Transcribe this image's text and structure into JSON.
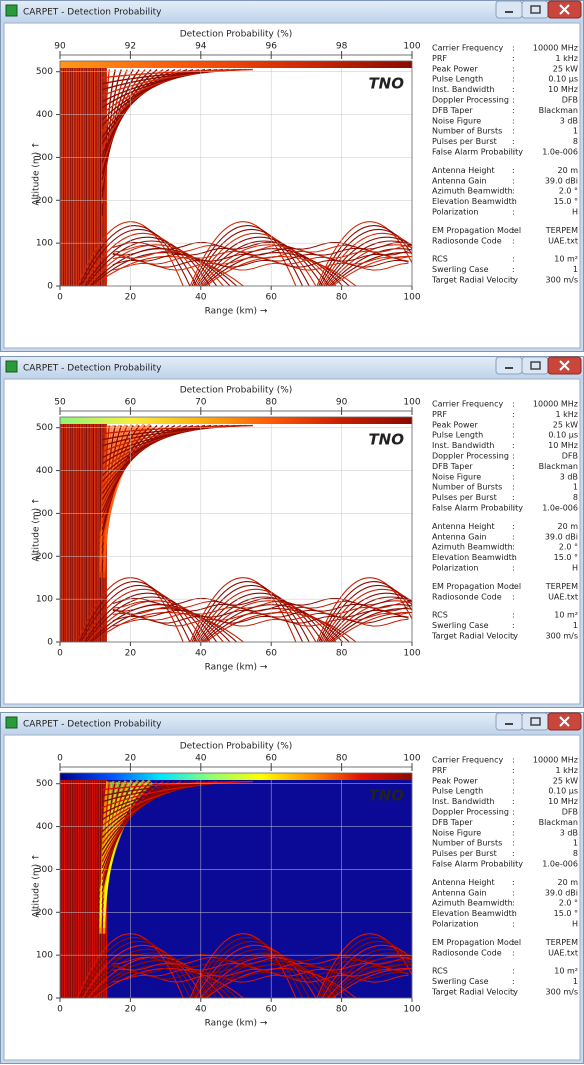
{
  "windows": [
    {
      "title": "CARPET - Detection Probability",
      "watermark": "TNO",
      "separator": ":",
      "chart": {
        "type": "heatmap",
        "colorbar_label": "Detection Probability (%)",
        "clim": [
          90,
          100
        ],
        "cticks": [
          90,
          92,
          94,
          96,
          98,
          100
        ],
        "colormap": [
          "#ff9a1a",
          "#ff5a0a",
          "#d42a05",
          "#8b0a00"
        ],
        "background": "#ffffff",
        "x_label": "Range (km) →",
        "xlim": [
          0,
          100
        ],
        "xticks": [
          0,
          20,
          40,
          60,
          80,
          100
        ],
        "y_label": "Altitude (m) ↑",
        "ylim": [
          0,
          525
        ],
        "yticks": [
          0,
          100,
          200,
          300,
          400,
          500
        ],
        "grid": true
      },
      "params": [
        [
          {
            "label": "Carrier Frequency",
            "value": "10000 MHz"
          },
          {
            "label": "PRF",
            "value": "1 kHz"
          },
          {
            "label": "Peak Power",
            "value": "25 kW"
          },
          {
            "label": "Pulse Length",
            "value": "0.10 µs"
          },
          {
            "label": "Inst. Bandwidth",
            "value": "10 MHz"
          },
          {
            "label": "Doppler Processing",
            "value": "DFB"
          },
          {
            "label": "DFB Taper",
            "value": "Blackman"
          },
          {
            "label": "Noise Figure",
            "value": "3 dB"
          },
          {
            "label": "Number of Bursts",
            "value": "1"
          },
          {
            "label": "Pulses per Burst",
            "value": "8"
          },
          {
            "label": "False Alarm Probability",
            "value": "1.0e-006"
          }
        ],
        [
          {
            "label": "Antenna Height",
            "value": "20 m"
          },
          {
            "label": "Antenna Gain",
            "value": "39.0 dBi"
          },
          {
            "label": "Azimuth Beamwidth",
            "value": "2.0 °"
          },
          {
            "label": "Elevation Beamwidth",
            "value": "15.0 °"
          },
          {
            "label": "Polarization",
            "value": "H"
          }
        ],
        [
          {
            "label": "EM Propagation Model",
            "value": "TERPEM"
          },
          {
            "label": "Radiosonde Code",
            "value": "UAE.txt"
          }
        ],
        [
          {
            "label": "RCS",
            "value": "10 m²"
          },
          {
            "label": "Swerling Case",
            "value": "1"
          },
          {
            "label": "Target Radial Velocity",
            "value": "300 m/s"
          }
        ]
      ]
    },
    {
      "title": "CARPET - Detection Probability",
      "watermark": "TNO",
      "separator": ":",
      "chart": {
        "type": "heatmap",
        "colorbar_label": "Detection Probability (%)",
        "clim": [
          50,
          100
        ],
        "cticks": [
          50,
          60,
          70,
          80,
          90,
          100
        ],
        "colormap": [
          "#8cf57a",
          "#f5f040",
          "#ffb010",
          "#ff5a05",
          "#c81e00",
          "#8b0a00"
        ],
        "background": "#ffffff",
        "x_label": "Range (km) →",
        "xlim": [
          0,
          100
        ],
        "xticks": [
          0,
          20,
          40,
          60,
          80,
          100
        ],
        "y_label": "Altitude (m) ↑",
        "ylim": [
          0,
          525
        ],
        "yticks": [
          0,
          100,
          200,
          300,
          400,
          500
        ],
        "grid": true
      },
      "params": [
        [
          {
            "label": "Carrier Frequency",
            "value": "10000 MHz"
          },
          {
            "label": "PRF",
            "value": "1 kHz"
          },
          {
            "label": "Peak Power",
            "value": "25 kW"
          },
          {
            "label": "Pulse Length",
            "value": "0.10 µs"
          },
          {
            "label": "Inst. Bandwidth",
            "value": "10 MHz"
          },
          {
            "label": "Doppler Processing",
            "value": "DFB"
          },
          {
            "label": "DFB Taper",
            "value": "Blackman"
          },
          {
            "label": "Noise Figure",
            "value": "3 dB"
          },
          {
            "label": "Number of Bursts",
            "value": "1"
          },
          {
            "label": "Pulses per Burst",
            "value": "8"
          },
          {
            "label": "False Alarm Probability",
            "value": "1.0e-006"
          }
        ],
        [
          {
            "label": "Antenna Height",
            "value": "20 m"
          },
          {
            "label": "Antenna Gain",
            "value": "39.0 dBi"
          },
          {
            "label": "Azimuth Beamwidth",
            "value": "2.0 °"
          },
          {
            "label": "Elevation Beamwidth",
            "value": "15.0 °"
          },
          {
            "label": "Polarization",
            "value": "H"
          }
        ],
        [
          {
            "label": "EM Propagation Model",
            "value": "TERPEM"
          },
          {
            "label": "Radiosonde Code",
            "value": "UAE.txt"
          }
        ],
        [
          {
            "label": "RCS",
            "value": "10 m²"
          },
          {
            "label": "Swerling Case",
            "value": "1"
          },
          {
            "label": "Target Radial Velocity",
            "value": "300 m/s"
          }
        ]
      ]
    },
    {
      "title": "CARPET - Detection Probability",
      "watermark": "TNO",
      "separator": ":",
      "chart": {
        "type": "heatmap",
        "colorbar_label": "Detection Probability (%)",
        "clim": [
          0,
          100
        ],
        "cticks": [
          0,
          20,
          40,
          60,
          80,
          100
        ],
        "colormap": [
          "#00008c",
          "#0050ff",
          "#00e6ff",
          "#90ff70",
          "#ffff00",
          "#ff9000",
          "#e01000",
          "#8b0a00"
        ],
        "background": "#0a0a96",
        "x_label": "Range (km) →",
        "xlim": [
          0,
          100
        ],
        "xticks": [
          0,
          20,
          40,
          60,
          80,
          100
        ],
        "y_label": "Altitude (m) ↑",
        "ylim": [
          0,
          525
        ],
        "yticks": [
          0,
          100,
          200,
          300,
          400,
          500
        ],
        "grid": true
      },
      "params": [
        [
          {
            "label": "Carrier Frequency",
            "value": "10000 MHz"
          },
          {
            "label": "PRF",
            "value": "1 kHz"
          },
          {
            "label": "Peak Power",
            "value": "25 kW"
          },
          {
            "label": "Pulse Length",
            "value": "0.10 µs"
          },
          {
            "label": "Inst. Bandwidth",
            "value": "10 MHz"
          },
          {
            "label": "Doppler Processing",
            "value": "DFB"
          },
          {
            "label": "DFB Taper",
            "value": "Blackman"
          },
          {
            "label": "Noise Figure",
            "value": "3 dB"
          },
          {
            "label": "Number of Bursts",
            "value": "1"
          },
          {
            "label": "Pulses per Burst",
            "value": "8"
          },
          {
            "label": "False Alarm Probability",
            "value": "1.0e-006"
          }
        ],
        [
          {
            "label": "Antenna Height",
            "value": "20 m"
          },
          {
            "label": "Antenna Gain",
            "value": "39.0 dBi"
          },
          {
            "label": "Azimuth Beamwidth",
            "value": "2.0 °"
          },
          {
            "label": "Elevation Beamwidth",
            "value": "15.0 °"
          },
          {
            "label": "Polarization",
            "value": "H"
          }
        ],
        [
          {
            "label": "EM Propagation Model",
            "value": "TERPEM"
          },
          {
            "label": "Radiosonde Code",
            "value": "UAE.txt"
          }
        ],
        [
          {
            "label": "RCS",
            "value": "10 m²"
          },
          {
            "label": "Swerling Case",
            "value": "1"
          },
          {
            "label": "Target Radial Velocity",
            "value": "300 m/s"
          }
        ]
      ]
    }
  ]
}
